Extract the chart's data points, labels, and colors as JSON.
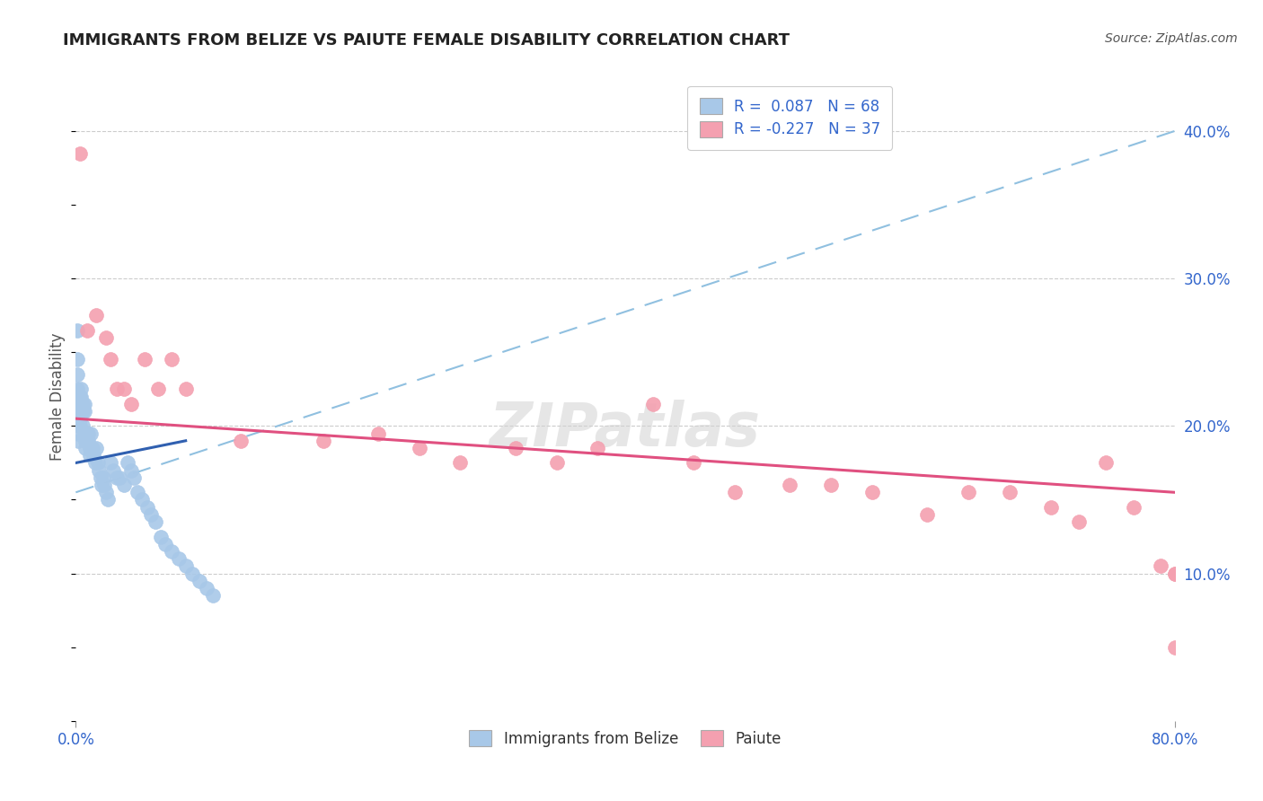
{
  "title": "IMMIGRANTS FROM BELIZE VS PAIUTE FEMALE DISABILITY CORRELATION CHART",
  "source": "Source: ZipAtlas.com",
  "ylabel": "Female Disability",
  "y_ticks": [
    0.1,
    0.2,
    0.3,
    0.4
  ],
  "y_tick_labels": [
    "10.0%",
    "20.0%",
    "30.0%",
    "40.0%"
  ],
  "x_min": 0.0,
  "x_max": 0.8,
  "y_min": 0.0,
  "y_max": 0.44,
  "blue_color": "#A8C8E8",
  "pink_color": "#F4A0B0",
  "line_blue_color": "#3060B0",
  "line_pink_color": "#E05080",
  "dashed_line_color": "#90C0E0",
  "blue_points_x": [
    0.001,
    0.001,
    0.001,
    0.001,
    0.001,
    0.001,
    0.002,
    0.002,
    0.002,
    0.002,
    0.002,
    0.003,
    0.003,
    0.003,
    0.003,
    0.004,
    0.004,
    0.004,
    0.004,
    0.005,
    0.005,
    0.005,
    0.006,
    0.006,
    0.007,
    0.007,
    0.007,
    0.008,
    0.008,
    0.009,
    0.009,
    0.01,
    0.01,
    0.011,
    0.012,
    0.013,
    0.014,
    0.015,
    0.016,
    0.017,
    0.018,
    0.019,
    0.02,
    0.021,
    0.022,
    0.023,
    0.025,
    0.027,
    0.03,
    0.032,
    0.035,
    0.038,
    0.04,
    0.042,
    0.045,
    0.048,
    0.052,
    0.055,
    0.058,
    0.062,
    0.065,
    0.07,
    0.075,
    0.08,
    0.085,
    0.09,
    0.095,
    0.1
  ],
  "blue_points_y": [
    0.265,
    0.245,
    0.235,
    0.225,
    0.215,
    0.205,
    0.215,
    0.21,
    0.2,
    0.195,
    0.19,
    0.22,
    0.215,
    0.205,
    0.2,
    0.225,
    0.22,
    0.215,
    0.21,
    0.215,
    0.21,
    0.2,
    0.215,
    0.21,
    0.195,
    0.19,
    0.185,
    0.195,
    0.19,
    0.195,
    0.19,
    0.185,
    0.18,
    0.195,
    0.185,
    0.18,
    0.175,
    0.185,
    0.175,
    0.17,
    0.165,
    0.16,
    0.165,
    0.16,
    0.155,
    0.15,
    0.175,
    0.17,
    0.165,
    0.165,
    0.16,
    0.175,
    0.17,
    0.165,
    0.155,
    0.15,
    0.145,
    0.14,
    0.135,
    0.125,
    0.12,
    0.115,
    0.11,
    0.105,
    0.1,
    0.095,
    0.09,
    0.085
  ],
  "pink_points_x": [
    0.003,
    0.008,
    0.015,
    0.022,
    0.025,
    0.03,
    0.035,
    0.04,
    0.05,
    0.06,
    0.07,
    0.08,
    0.12,
    0.18,
    0.22,
    0.25,
    0.28,
    0.32,
    0.35,
    0.38,
    0.42,
    0.45,
    0.48,
    0.52,
    0.55,
    0.58,
    0.62,
    0.65,
    0.68,
    0.71,
    0.73,
    0.75,
    0.77,
    0.79,
    0.8,
    0.8,
    0.8
  ],
  "pink_points_y": [
    0.385,
    0.265,
    0.275,
    0.26,
    0.245,
    0.225,
    0.225,
    0.215,
    0.245,
    0.225,
    0.245,
    0.225,
    0.19,
    0.19,
    0.195,
    0.185,
    0.175,
    0.185,
    0.175,
    0.185,
    0.215,
    0.175,
    0.155,
    0.16,
    0.16,
    0.155,
    0.14,
    0.155,
    0.155,
    0.145,
    0.135,
    0.175,
    0.145,
    0.105,
    0.1,
    0.1,
    0.05
  ],
  "blue_line_x0": 0.0,
  "blue_line_x1": 0.08,
  "blue_line_y0": 0.175,
  "blue_line_y1": 0.19,
  "pink_line_x0": 0.0,
  "pink_line_x1": 0.8,
  "pink_line_y0": 0.205,
  "pink_line_y1": 0.155,
  "dashed_line_x0": 0.0,
  "dashed_line_x1": 0.8,
  "dashed_line_y0": 0.155,
  "dashed_line_y1": 0.4
}
